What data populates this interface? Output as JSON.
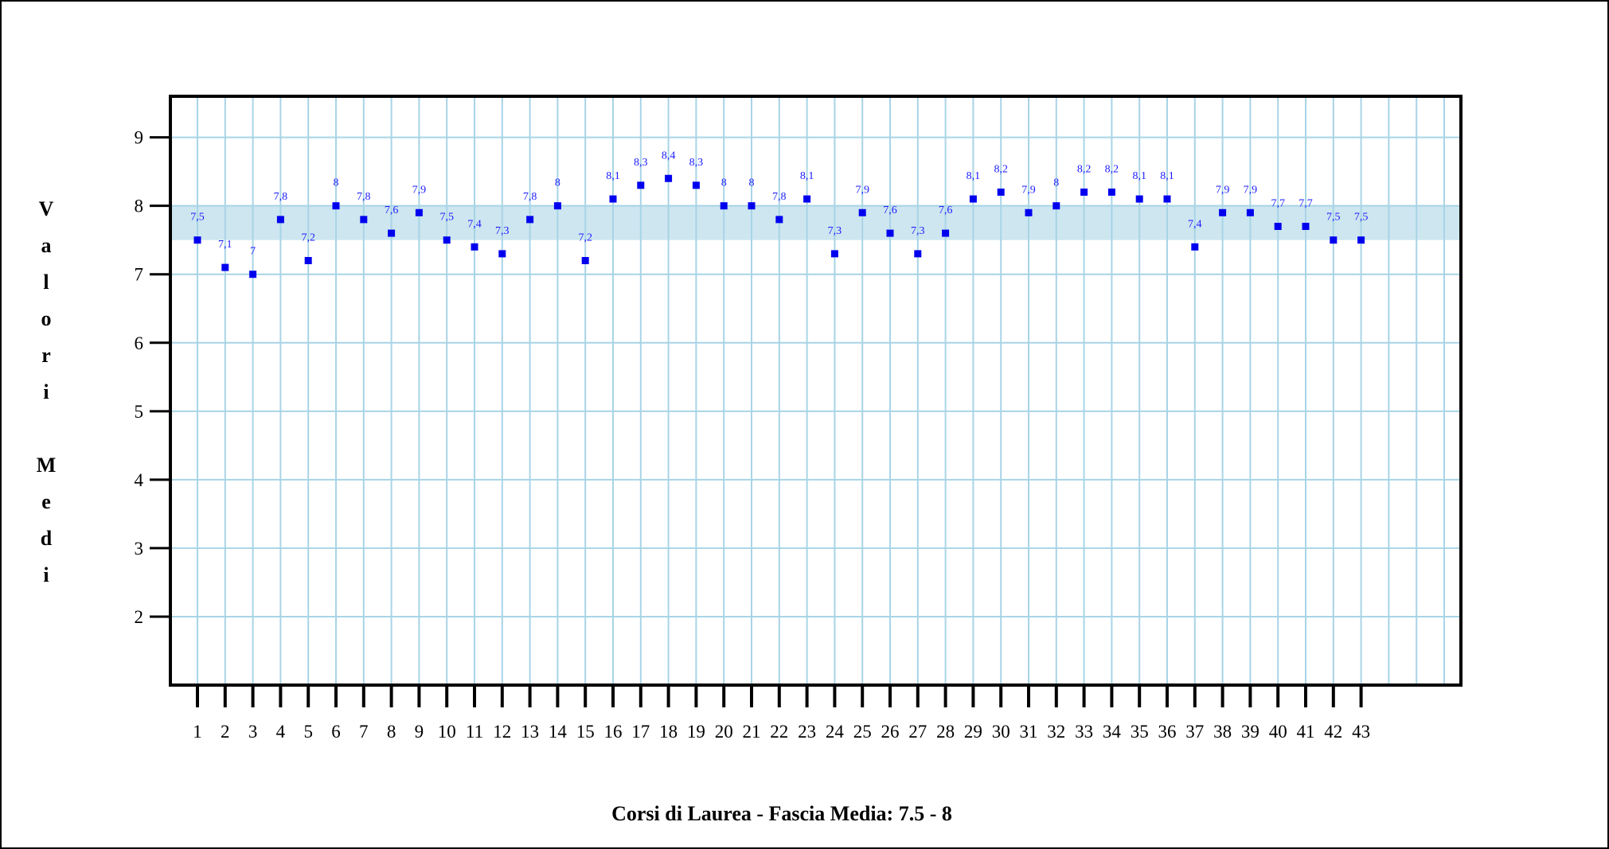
{
  "chart_data": {
    "type": "scatter",
    "title": "Corsi di Laurea - Fascia Media: 7.5 - 8",
    "ylabel": "Valori Medi",
    "xlabel": "",
    "x": [
      1,
      2,
      3,
      4,
      5,
      6,
      7,
      8,
      9,
      10,
      11,
      12,
      13,
      14,
      15,
      16,
      17,
      18,
      19,
      20,
      21,
      22,
      23,
      24,
      25,
      26,
      27,
      28,
      29,
      30,
      31,
      32,
      33,
      34,
      35,
      36,
      37,
      38,
      39,
      40,
      41,
      42,
      43
    ],
    "values": [
      7.5,
      7.1,
      7,
      7.8,
      7.2,
      8,
      7.8,
      7.6,
      7.9,
      7.5,
      7.4,
      7.3,
      7.8,
      8,
      7.2,
      8.1,
      8.3,
      8.4,
      8.3,
      8,
      8,
      7.8,
      8.1,
      7.3,
      7.9,
      7.6,
      7.3,
      7.6,
      8.1,
      8.2,
      7.9,
      8,
      8.2,
      8.2,
      8.1,
      8.1,
      7.4,
      7.9,
      7.9,
      7.7,
      7.7,
      7.5,
      7.5
    ],
    "value_labels": [
      "7,5",
      "7,1",
      "7",
      "7,8",
      "7,2",
      "8",
      "7,8",
      "7,6",
      "7,9",
      "7,5",
      "7,4",
      "7,3",
      "7,8",
      "8",
      "7,2",
      "8,1",
      "8,3",
      "8,4",
      "8,3",
      "8",
      "8",
      "7,8",
      "8,1",
      "7,3",
      "7,9",
      "7,6",
      "7,3",
      "7,6",
      "8,1",
      "8,2",
      "7,9",
      "8",
      "8,2",
      "8,2",
      "8,1",
      "8,1",
      "7,4",
      "7,9",
      "7,9",
      "7,7",
      "7,7",
      "7,5",
      "7,5"
    ],
    "y_ticks": [
      2,
      3,
      4,
      5,
      6,
      7,
      8,
      9
    ],
    "ylim": [
      1,
      9.6
    ],
    "band": [
      7.5,
      8
    ],
    "grid": true,
    "colors": {
      "point": "#0000ee",
      "value_label": "#1a1aff",
      "grid": "#a8d4e6",
      "band": "#cde6f0",
      "axis": "#000000"
    }
  }
}
